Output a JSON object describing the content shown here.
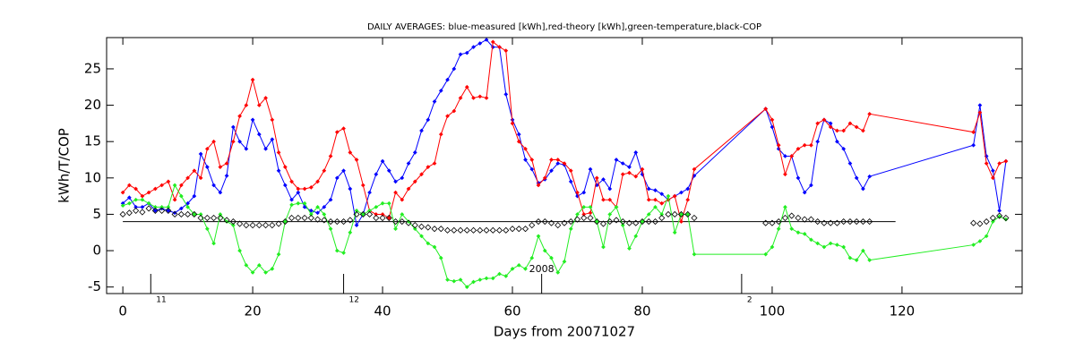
{
  "chart_data": {
    "type": "line",
    "title": "DAILY AVERAGES: blue-measured [kWh],red-theory [kWh],green-temperature,black-COP",
    "xlabel": "Days from 20071027",
    "ylabel": "kWh/T/COP",
    "xlim": [
      -2.5,
      138.5
    ],
    "ylim": [
      -5.9,
      29.3
    ],
    "xticks": [
      0,
      20,
      40,
      60,
      80,
      100,
      120
    ],
    "yticks": [
      -5,
      0,
      5,
      10,
      15,
      20,
      25
    ],
    "x": [
      0,
      1,
      2,
      3,
      4,
      5,
      6,
      7,
      8,
      9,
      10,
      11,
      12,
      13,
      14,
      15,
      16,
      17,
      18,
      19,
      20,
      21,
      22,
      23,
      24,
      25,
      26,
      27,
      28,
      29,
      30,
      31,
      32,
      33,
      34,
      35,
      36,
      37,
      38,
      39,
      40,
      41,
      42,
      43,
      44,
      45,
      46,
      47,
      48,
      49,
      50,
      51,
      52,
      53,
      54,
      55,
      56,
      57,
      58,
      59,
      60,
      61,
      62,
      63,
      64,
      65,
      66,
      67,
      68,
      69,
      70,
      71,
      72,
      73,
      74,
      75,
      76,
      77,
      78,
      79,
      80,
      81,
      82,
      83,
      84,
      85,
      86,
      87,
      88,
      99,
      100,
      101,
      102,
      103,
      104,
      105,
      106,
      107,
      108,
      109,
      110,
      111,
      112,
      113,
      114,
      115,
      131,
      132,
      133,
      134,
      135,
      136
    ],
    "series": [
      {
        "color": "#0000ff",
        "mode": "lines+markers",
        "values": [
          6.5,
          7.3,
          6,
          6,
          6.5,
          5.5,
          5.8,
          5.5,
          5.2,
          5.8,
          6.5,
          7.5,
          13.3,
          11.5,
          9,
          8,
          10.3,
          17,
          15,
          14,
          18,
          16,
          14,
          15.3,
          11,
          9,
          7,
          8,
          6,
          5.5,
          5.2,
          6,
          7,
          10,
          11,
          8.5,
          3.5,
          5,
          8,
          10.5,
          12.3,
          11,
          9.5,
          10,
          12,
          13.5,
          16.5,
          18,
          20.5,
          22,
          23.5,
          25,
          27,
          27.2,
          28,
          28.5,
          29,
          28,
          28,
          21.5,
          18,
          16,
          12.5,
          11.2,
          9.3,
          9.8,
          11,
          12,
          11.8,
          9.5,
          7.5,
          8,
          11.2,
          9,
          9.8,
          8.5,
          12.5,
          12,
          11.5,
          13.5,
          10.5,
          8.5,
          8.3,
          7.8,
          7,
          7.5,
          8,
          8.5,
          10.3,
          19.5,
          17,
          14,
          13,
          13,
          10,
          8,
          9,
          15,
          18,
          17.5,
          15,
          14,
          12,
          10,
          8.5,
          10.2,
          14.5,
          20,
          13,
          11,
          5.5,
          12.3
        ]
      },
      {
        "color": "#ff0000",
        "mode": "lines+markers",
        "values": [
          8,
          9,
          8.5,
          7.5,
          8,
          8.5,
          9,
          9.5,
          7,
          9,
          10,
          11,
          10,
          14,
          15,
          11.5,
          12,
          15,
          18.5,
          20,
          23.5,
          20,
          21,
          18,
          13.5,
          11.5,
          9.5,
          8.5,
          8.5,
          8.7,
          9.5,
          11,
          13,
          16.3,
          16.8,
          13.5,
          12.5,
          9,
          5.5,
          5,
          5,
          4.5,
          8,
          7,
          8.5,
          9.5,
          10.5,
          11.5,
          12,
          16,
          18.5,
          19.2,
          21,
          22.5,
          21,
          21.2,
          21,
          28.7,
          28,
          27.5,
          17.5,
          15,
          14,
          12.5,
          9,
          10,
          12.5,
          12.5,
          12,
          11,
          8,
          5,
          5.2,
          10,
          7,
          7,
          6,
          10.5,
          10.7,
          10.2,
          11.2,
          7,
          7,
          6.5,
          7,
          7.5,
          4,
          7,
          11.2,
          19.5,
          18,
          14.5,
          10.5,
          13,
          14,
          14.5,
          14.5,
          17.5,
          18,
          17,
          16.5,
          16.5,
          17.5,
          17,
          16.5,
          18.8,
          16.3,
          19,
          12,
          10,
          12,
          12.3
        ]
      },
      {
        "color": "#22ee22",
        "mode": "lines+markers",
        "values": [
          6.2,
          6.5,
          7,
          7,
          6.5,
          6,
          6,
          6,
          9,
          7.5,
          6,
          5,
          5,
          3,
          1,
          5,
          4,
          3.5,
          0,
          -2,
          -3,
          -2,
          -3,
          -2.5,
          -0.5,
          4,
          6.3,
          6.5,
          6.5,
          5,
          6,
          5,
          3,
          0,
          -0.3,
          2.5,
          5.5,
          5,
          5.5,
          6,
          6.5,
          6.5,
          3,
          5,
          4,
          3,
          2,
          1,
          0.5,
          -1,
          -4,
          -4.2,
          -4,
          -5,
          -4.3,
          -4,
          -3.8,
          -3.8,
          -3.2,
          -3.5,
          -2.5,
          -2,
          -2.5,
          -1,
          2,
          0,
          -1,
          -3,
          -1.5,
          3,
          5,
          6,
          6,
          4,
          0.5,
          5,
          6,
          3.5,
          0.3,
          2,
          4,
          5,
          6,
          5,
          7.5,
          2.5,
          5,
          5,
          -0.5,
          -0.5,
          0.5,
          3,
          6,
          3,
          2.5,
          2.3,
          1.5,
          1,
          0.5,
          1,
          0.8,
          0.5,
          -1,
          -1.3,
          0,
          -1.3,
          0.8,
          1.3,
          2,
          4,
          4.7,
          4.3
        ]
      },
      {
        "color": "#000000",
        "mode": "markers",
        "values": [
          5,
          5.2,
          5.5,
          5.3,
          5.8,
          5.5,
          5.5,
          5.5,
          5,
          5,
          5,
          5,
          4.5,
          4.5,
          4.5,
          4.5,
          4.2,
          4,
          3.7,
          3.5,
          3.5,
          3.5,
          3.5,
          3.5,
          3.7,
          4,
          4.5,
          4.5,
          4.5,
          4.5,
          4.3,
          4.2,
          4,
          4,
          4,
          4.2,
          5,
          5,
          5,
          4.5,
          4.5,
          4.5,
          4,
          4,
          3.8,
          3.5,
          3.3,
          3.2,
          3,
          3,
          2.8,
          2.8,
          2.8,
          2.8,
          2.8,
          2.8,
          2.8,
          2.8,
          2.8,
          2.8,
          3,
          3,
          3,
          3.5,
          4,
          4,
          3.8,
          3.5,
          3.8,
          4,
          4.3,
          4.5,
          4.5,
          4,
          3.7,
          4,
          4.2,
          4,
          3.8,
          3.8,
          4,
          4,
          4,
          4.5,
          5,
          5,
          5,
          5,
          4.5,
          3.8,
          3.8,
          4,
          4.5,
          4.8,
          4.5,
          4.3,
          4.3,
          4,
          3.8,
          3.8,
          3.8,
          4,
          4,
          4,
          4,
          4,
          3.8,
          3.7,
          4,
          4.5,
          4.8,
          4.5
        ]
      }
    ],
    "hline": {
      "y": 4,
      "x_start": 0,
      "x_end": 119,
      "color": "#000000"
    },
    "month_marks": [
      {
        "x": 4.3,
        "label": "11"
      },
      {
        "x": 34,
        "label": "12"
      },
      {
        "x": 64.5,
        "label": "2008"
      },
      {
        "x": 95.3,
        "label": "2"
      }
    ]
  }
}
